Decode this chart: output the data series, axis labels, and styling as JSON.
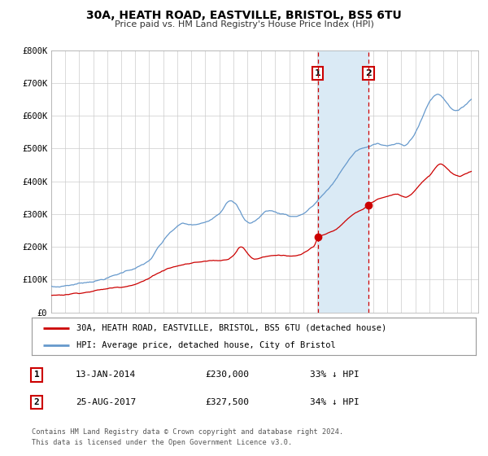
{
  "title": "30A, HEATH ROAD, EASTVILLE, BRISTOL, BS5 6TU",
  "subtitle": "Price paid vs. HM Land Registry's House Price Index (HPI)",
  "ylim": [
    0,
    800000
  ],
  "xlim_start": 1995.0,
  "xlim_end": 2025.5,
  "yticks": [
    0,
    100000,
    200000,
    300000,
    400000,
    500000,
    600000,
    700000,
    800000
  ],
  "ytick_labels": [
    "£0",
    "£100K",
    "£200K",
    "£300K",
    "£400K",
    "£500K",
    "£600K",
    "£700K",
    "£800K"
  ],
  "red_line_color": "#cc0000",
  "blue_line_color": "#6699cc",
  "shade_color": "#daeaf5",
  "marker1_x": 2014.04,
  "marker1_y": 230000,
  "marker2_x": 2017.65,
  "marker2_y": 327500,
  "vline1_x": 2014.04,
  "vline2_x": 2017.65,
  "legend_label_red": "30A, HEATH ROAD, EASTVILLE, BRISTOL, BS5 6TU (detached house)",
  "legend_label_blue": "HPI: Average price, detached house, City of Bristol",
  "table_row1": [
    "1",
    "13-JAN-2014",
    "£230,000",
    "33% ↓ HPI"
  ],
  "table_row2": [
    "2",
    "25-AUG-2017",
    "£327,500",
    "34% ↓ HPI"
  ],
  "footnote1": "Contains HM Land Registry data © Crown copyright and database right 2024.",
  "footnote2": "This data is licensed under the Open Government Licence v3.0.",
  "background_color": "#ffffff",
  "grid_color": "#cccccc",
  "hpi_anchors": [
    [
      1995.0,
      80000
    ],
    [
      1995.3,
      78000
    ],
    [
      1995.6,
      79000
    ],
    [
      1996.0,
      82000
    ],
    [
      1996.3,
      84000
    ],
    [
      1996.6,
      86000
    ],
    [
      1997.0,
      89000
    ],
    [
      1997.3,
      92000
    ],
    [
      1997.6,
      94000
    ],
    [
      1998.0,
      98000
    ],
    [
      1998.3,
      100000
    ],
    [
      1998.6,
      103000
    ],
    [
      1999.0,
      108000
    ],
    [
      1999.3,
      112000
    ],
    [
      1999.6,
      116000
    ],
    [
      2000.0,
      122000
    ],
    [
      2000.3,
      128000
    ],
    [
      2000.6,
      133000
    ],
    [
      2001.0,
      138000
    ],
    [
      2001.3,
      143000
    ],
    [
      2001.6,
      149000
    ],
    [
      2002.0,
      160000
    ],
    [
      2002.3,
      175000
    ],
    [
      2002.6,
      195000
    ],
    [
      2003.0,
      215000
    ],
    [
      2003.3,
      232000
    ],
    [
      2003.6,
      245000
    ],
    [
      2004.0,
      258000
    ],
    [
      2004.3,
      266000
    ],
    [
      2004.6,
      265000
    ],
    [
      2005.0,
      262000
    ],
    [
      2005.3,
      262000
    ],
    [
      2005.6,
      263000
    ],
    [
      2006.0,
      268000
    ],
    [
      2006.3,
      275000
    ],
    [
      2006.6,
      286000
    ],
    [
      2007.0,
      300000
    ],
    [
      2007.3,
      318000
    ],
    [
      2007.6,
      340000
    ],
    [
      2008.0,
      338000
    ],
    [
      2008.2,
      330000
    ],
    [
      2008.4,
      315000
    ],
    [
      2008.6,
      298000
    ],
    [
      2008.8,
      282000
    ],
    [
      2009.0,
      275000
    ],
    [
      2009.2,
      272000
    ],
    [
      2009.4,
      275000
    ],
    [
      2009.6,
      280000
    ],
    [
      2009.8,
      286000
    ],
    [
      2010.0,
      295000
    ],
    [
      2010.2,
      303000
    ],
    [
      2010.4,
      308000
    ],
    [
      2010.6,
      310000
    ],
    [
      2010.8,
      308000
    ],
    [
      2011.0,
      305000
    ],
    [
      2011.2,
      302000
    ],
    [
      2011.4,
      300000
    ],
    [
      2011.6,
      299000
    ],
    [
      2011.8,
      298000
    ],
    [
      2012.0,
      295000
    ],
    [
      2012.2,
      293000
    ],
    [
      2012.4,
      293000
    ],
    [
      2012.6,
      295000
    ],
    [
      2012.8,
      298000
    ],
    [
      2013.0,
      302000
    ],
    [
      2013.2,
      308000
    ],
    [
      2013.4,
      315000
    ],
    [
      2013.6,
      322000
    ],
    [
      2013.8,
      330000
    ],
    [
      2014.0,
      340000
    ],
    [
      2014.2,
      350000
    ],
    [
      2014.4,
      358000
    ],
    [
      2014.6,
      366000
    ],
    [
      2014.8,
      374000
    ],
    [
      2015.0,
      385000
    ],
    [
      2015.2,
      396000
    ],
    [
      2015.4,
      408000
    ],
    [
      2015.6,
      422000
    ],
    [
      2015.8,
      436000
    ],
    [
      2016.0,
      448000
    ],
    [
      2016.2,
      460000
    ],
    [
      2016.4,
      472000
    ],
    [
      2016.6,
      482000
    ],
    [
      2016.8,
      490000
    ],
    [
      2017.0,
      494000
    ],
    [
      2017.2,
      497000
    ],
    [
      2017.4,
      499000
    ],
    [
      2017.6,
      500000
    ],
    [
      2017.8,
      502000
    ],
    [
      2018.0,
      506000
    ],
    [
      2018.2,
      510000
    ],
    [
      2018.4,
      512000
    ],
    [
      2018.6,
      510000
    ],
    [
      2018.8,
      508000
    ],
    [
      2019.0,
      508000
    ],
    [
      2019.2,
      509000
    ],
    [
      2019.4,
      510000
    ],
    [
      2019.6,
      512000
    ],
    [
      2019.8,
      511000
    ],
    [
      2020.0,
      508000
    ],
    [
      2020.2,
      505000
    ],
    [
      2020.4,
      508000
    ],
    [
      2020.6,
      518000
    ],
    [
      2020.8,
      530000
    ],
    [
      2021.0,
      545000
    ],
    [
      2021.2,
      562000
    ],
    [
      2021.4,
      580000
    ],
    [
      2021.6,
      600000
    ],
    [
      2021.8,
      620000
    ],
    [
      2022.0,
      638000
    ],
    [
      2022.2,
      650000
    ],
    [
      2022.4,
      658000
    ],
    [
      2022.6,
      662000
    ],
    [
      2022.8,
      660000
    ],
    [
      2023.0,
      652000
    ],
    [
      2023.2,
      642000
    ],
    [
      2023.4,
      630000
    ],
    [
      2023.6,
      622000
    ],
    [
      2023.8,
      618000
    ],
    [
      2024.0,
      616000
    ],
    [
      2024.2,
      618000
    ],
    [
      2024.4,
      624000
    ],
    [
      2024.6,
      632000
    ],
    [
      2024.8,
      642000
    ],
    [
      2025.0,
      650000
    ]
  ],
  "red_anchors": [
    [
      1995.0,
      52000
    ],
    [
      1995.3,
      53000
    ],
    [
      1995.6,
      54000
    ],
    [
      1996.0,
      55000
    ],
    [
      1996.3,
      57000
    ],
    [
      1996.6,
      59000
    ],
    [
      1997.0,
      61000
    ],
    [
      1997.3,
      63000
    ],
    [
      1997.6,
      65000
    ],
    [
      1998.0,
      68000
    ],
    [
      1998.3,
      70000
    ],
    [
      1998.6,
      72000
    ],
    [
      1999.0,
      74000
    ],
    [
      1999.3,
      76000
    ],
    [
      1999.6,
      78000
    ],
    [
      2000.0,
      80000
    ],
    [
      2000.3,
      83000
    ],
    [
      2000.6,
      87000
    ],
    [
      2001.0,
      91000
    ],
    [
      2001.3,
      96000
    ],
    [
      2001.6,
      101000
    ],
    [
      2002.0,
      108000
    ],
    [
      2002.3,
      116000
    ],
    [
      2002.6,
      124000
    ],
    [
      2003.0,
      132000
    ],
    [
      2003.3,
      139000
    ],
    [
      2003.6,
      143000
    ],
    [
      2004.0,
      147000
    ],
    [
      2004.3,
      150000
    ],
    [
      2004.6,
      153000
    ],
    [
      2005.0,
      155000
    ],
    [
      2005.2,
      157000
    ],
    [
      2005.4,
      158000
    ],
    [
      2005.6,
      159000
    ],
    [
      2005.8,
      160000
    ],
    [
      2006.0,
      161000
    ],
    [
      2006.2,
      162000
    ],
    [
      2006.4,
      163000
    ],
    [
      2006.6,
      163000
    ],
    [
      2006.8,
      163000
    ],
    [
      2007.0,
      163000
    ],
    [
      2007.2,
      164000
    ],
    [
      2007.4,
      165000
    ],
    [
      2007.6,
      168000
    ],
    [
      2007.8,
      173000
    ],
    [
      2008.0,
      181000
    ],
    [
      2008.2,
      192000
    ],
    [
      2008.4,
      205000
    ],
    [
      2008.6,
      208000
    ],
    [
      2008.8,
      200000
    ],
    [
      2009.0,
      188000
    ],
    [
      2009.2,
      178000
    ],
    [
      2009.4,
      172000
    ],
    [
      2009.6,
      170000
    ],
    [
      2009.8,
      172000
    ],
    [
      2010.0,
      175000
    ],
    [
      2010.2,
      178000
    ],
    [
      2010.4,
      180000
    ],
    [
      2010.6,
      181000
    ],
    [
      2010.8,
      182000
    ],
    [
      2011.0,
      183000
    ],
    [
      2011.2,
      184000
    ],
    [
      2011.4,
      184000
    ],
    [
      2011.6,
      184000
    ],
    [
      2011.8,
      183000
    ],
    [
      2012.0,
      181000
    ],
    [
      2012.2,
      180000
    ],
    [
      2012.4,
      180000
    ],
    [
      2012.6,
      181000
    ],
    [
      2012.8,
      183000
    ],
    [
      2013.0,
      187000
    ],
    [
      2013.2,
      192000
    ],
    [
      2013.4,
      197000
    ],
    [
      2013.6,
      202000
    ],
    [
      2013.8,
      208000
    ],
    [
      2014.04,
      230000
    ],
    [
      2014.2,
      234000
    ],
    [
      2014.4,
      238000
    ],
    [
      2014.6,
      241000
    ],
    [
      2014.8,
      244000
    ],
    [
      2015.0,
      248000
    ],
    [
      2015.2,
      253000
    ],
    [
      2015.4,
      258000
    ],
    [
      2015.6,
      264000
    ],
    [
      2015.8,
      271000
    ],
    [
      2016.0,
      279000
    ],
    [
      2016.2,
      287000
    ],
    [
      2016.4,
      294000
    ],
    [
      2016.6,
      300000
    ],
    [
      2016.8,
      305000
    ],
    [
      2017.0,
      309000
    ],
    [
      2017.2,
      313000
    ],
    [
      2017.4,
      318000
    ],
    [
      2017.65,
      327500
    ],
    [
      2017.8,
      332000
    ],
    [
      2018.0,
      337000
    ],
    [
      2018.2,
      342000
    ],
    [
      2018.4,
      346000
    ],
    [
      2018.6,
      349000
    ],
    [
      2018.8,
      351000
    ],
    [
      2019.0,
      353000
    ],
    [
      2019.2,
      355000
    ],
    [
      2019.4,
      357000
    ],
    [
      2019.6,
      358000
    ],
    [
      2019.8,
      357000
    ],
    [
      2020.0,
      354000
    ],
    [
      2020.2,
      350000
    ],
    [
      2020.4,
      350000
    ],
    [
      2020.6,
      355000
    ],
    [
      2020.8,
      363000
    ],
    [
      2021.0,
      372000
    ],
    [
      2021.2,
      383000
    ],
    [
      2021.4,
      393000
    ],
    [
      2021.6,
      402000
    ],
    [
      2021.8,
      410000
    ],
    [
      2022.0,
      418000
    ],
    [
      2022.2,
      428000
    ],
    [
      2022.4,
      440000
    ],
    [
      2022.6,
      450000
    ],
    [
      2022.8,
      455000
    ],
    [
      2023.0,
      452000
    ],
    [
      2023.2,
      445000
    ],
    [
      2023.4,
      436000
    ],
    [
      2023.6,
      428000
    ],
    [
      2023.8,
      422000
    ],
    [
      2024.0,
      418000
    ],
    [
      2024.2,
      416000
    ],
    [
      2024.4,
      418000
    ],
    [
      2024.6,
      422000
    ],
    [
      2024.8,
      426000
    ],
    [
      2025.0,
      430000
    ]
  ]
}
